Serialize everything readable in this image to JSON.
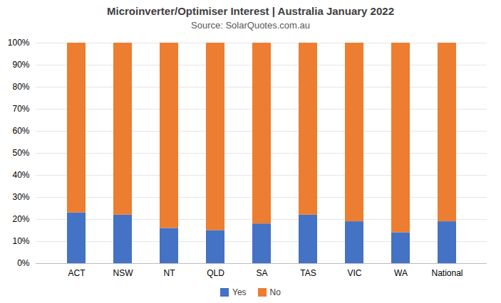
{
  "chart_data": {
    "type": "bar",
    "title": "Microinverter/Optimiser Interest  |  Australia January 2022",
    "subtitle": "Source: SolarQuotes.com.au",
    "categories": [
      "ACT",
      "NSW",
      "NT",
      "QLD",
      "SA",
      "TAS",
      "VIC",
      "WA",
      "National"
    ],
    "series": [
      {
        "name": "Yes",
        "color": "#4472C4",
        "values": [
          23,
          22,
          16,
          15,
          18,
          22,
          19,
          14,
          19
        ]
      },
      {
        "name": "No",
        "color": "#ED7D31",
        "values": [
          77,
          78,
          84,
          85,
          82,
          78,
          81,
          86,
          81
        ]
      }
    ],
    "stacked": true,
    "ylim": [
      0,
      100
    ],
    "yticks": [
      {
        "value": 0,
        "label": "0%"
      },
      {
        "value": 10,
        "label": "10%"
      },
      {
        "value": 20,
        "label": "20%"
      },
      {
        "value": 30,
        "label": "30%"
      },
      {
        "value": 40,
        "label": "40%"
      },
      {
        "value": 50,
        "label": "50%"
      },
      {
        "value": 60,
        "label": "60%"
      },
      {
        "value": 70,
        "label": "70%"
      },
      {
        "value": 80,
        "label": "80%"
      },
      {
        "value": 90,
        "label": "90%"
      },
      {
        "value": 100,
        "label": "100%"
      }
    ],
    "grid": true,
    "legend": "bottom"
  }
}
